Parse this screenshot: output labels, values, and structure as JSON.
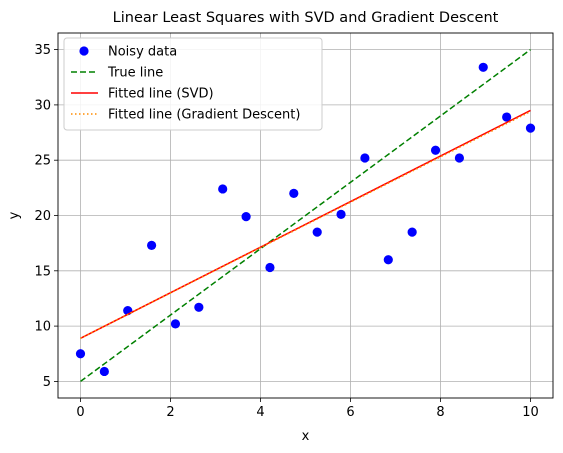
{
  "chart_data": {
    "type": "scatter",
    "title": "Linear Least Squares with SVD and Gradient Descent",
    "xlabel": "x",
    "ylabel": "y",
    "xlim": [
      -0.5,
      10.5
    ],
    "ylim": [
      3.5,
      36.5
    ],
    "xticks": [
      0,
      2,
      4,
      6,
      8,
      10
    ],
    "yticks": [
      5,
      10,
      15,
      20,
      25,
      30,
      35
    ],
    "grid": true,
    "legend_position": "top-left",
    "series": [
      {
        "name": "Noisy data",
        "kind": "scatter",
        "color": "#0000ff",
        "x": [
          0.0,
          0.53,
          1.05,
          1.58,
          2.11,
          2.63,
          3.16,
          3.68,
          4.21,
          4.74,
          5.26,
          5.79,
          6.32,
          6.84,
          7.37,
          7.89,
          8.42,
          8.95,
          9.47,
          10.0
        ],
        "y": [
          7.5,
          5.9,
          11.4,
          17.3,
          10.2,
          11.7,
          22.4,
          19.9,
          15.3,
          22.0,
          18.5,
          20.1,
          25.2,
          16.0,
          18.5,
          25.9,
          25.2,
          33.4,
          28.9,
          27.9
        ]
      },
      {
        "name": "True line",
        "kind": "line",
        "style": "dashed",
        "color": "#008000",
        "x": [
          0,
          10
        ],
        "y": [
          5.0,
          35.0
        ]
      },
      {
        "name": "Fitted line (SVD)",
        "kind": "line",
        "style": "solid",
        "color": "#ff0000",
        "x": [
          0,
          10
        ],
        "y": [
          8.9,
          29.5
        ]
      },
      {
        "name": "Fitted line (Gradient Descent)",
        "kind": "line",
        "style": "dotted",
        "color": "#ff8c00",
        "x": [
          0,
          10
        ],
        "y": [
          8.9,
          29.4
        ]
      }
    ]
  }
}
